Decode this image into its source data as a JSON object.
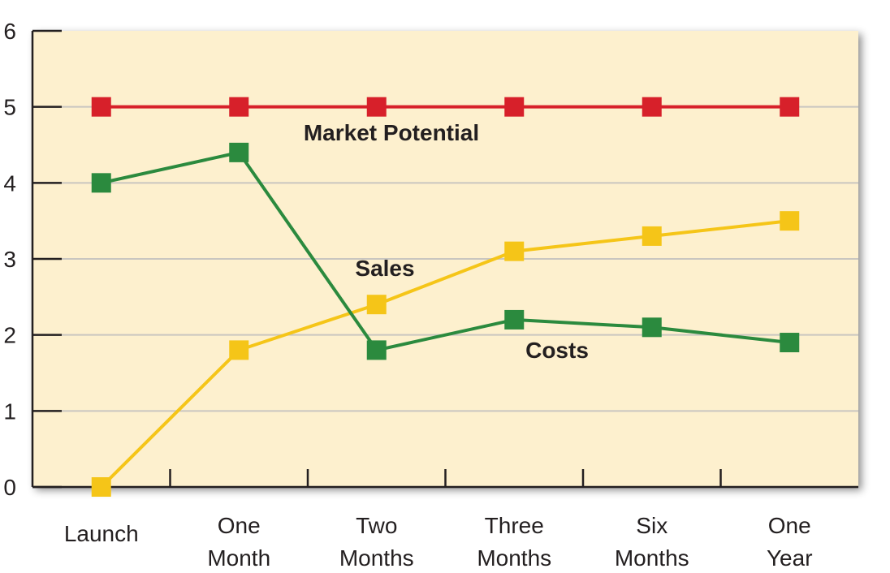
{
  "chart_data": {
    "type": "line",
    "categories": [
      [
        "Launch"
      ],
      [
        "One",
        "Month"
      ],
      [
        "Two",
        "Months"
      ],
      [
        "Three",
        "Months"
      ],
      [
        "Six",
        "Months"
      ],
      [
        "One",
        "Year"
      ]
    ],
    "ylim": [
      0,
      6
    ],
    "yticks": [
      "0",
      "1",
      "2",
      "3",
      "4",
      "5",
      "6"
    ],
    "grid": true,
    "legend": "none",
    "plot_background": "#fdf0ce",
    "series": [
      {
        "name": "Market Potential",
        "color": "#d7202a",
        "values": [
          5,
          5,
          5,
          5,
          5,
          5
        ]
      },
      {
        "name": "Sales",
        "color": "#f5c518",
        "values": [
          0,
          1.8,
          2.4,
          3.1,
          3.3,
          3.5
        ]
      },
      {
        "name": "Costs",
        "color": "#2b8a3e",
        "values": [
          4,
          4.4,
          1.8,
          2.2,
          2.1,
          1.9
        ]
      }
    ]
  }
}
